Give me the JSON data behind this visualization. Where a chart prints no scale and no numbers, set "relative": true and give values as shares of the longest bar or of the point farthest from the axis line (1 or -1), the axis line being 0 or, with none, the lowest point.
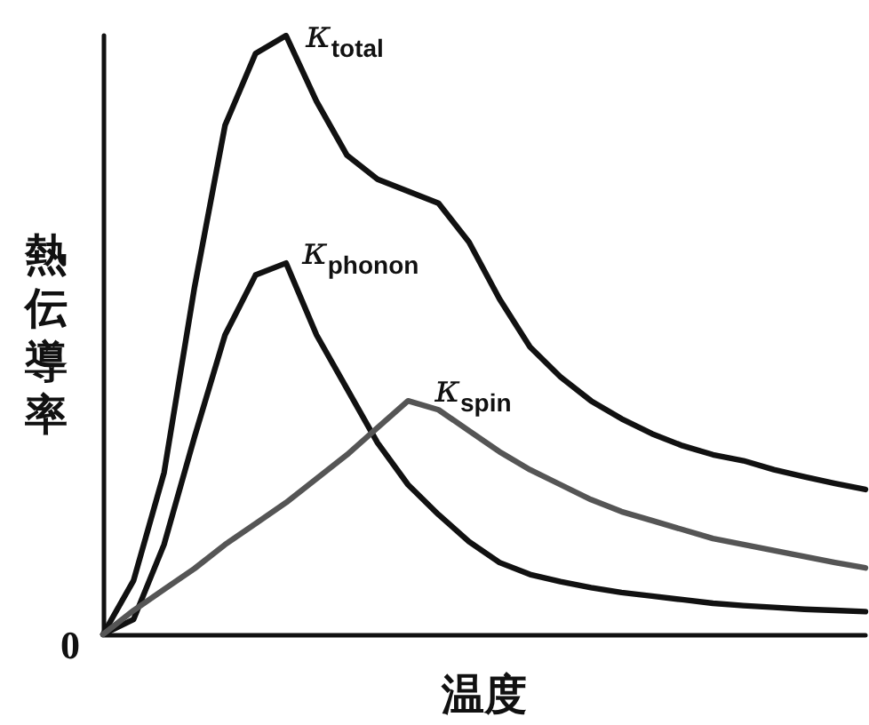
{
  "chart_data": {
    "type": "line",
    "relative": true,
    "xlabel": "温度",
    "ylabel": "熱伝導率",
    "annotations": [
      "0"
    ],
    "grid": false,
    "legend": false,
    "marker": "none",
    "line_style": "solid",
    "tick_labels": false,
    "categories": [
      null,
      null,
      null,
      null,
      null,
      null,
      null,
      null,
      null,
      null,
      null,
      null,
      null,
      null,
      null,
      null,
      null,
      null,
      null,
      null,
      null,
      null,
      null,
      null,
      null,
      null
    ],
    "series": [
      {
        "name": "κ$_{total}$",
        "color": "#111111",
        "values": [
          0,
          0.09,
          0.27,
          0.58,
          0.85,
          0.97,
          1,
          0.89,
          0.8,
          0.76,
          0.74,
          0.72,
          0.655,
          0.56,
          0.48,
          0.43,
          0.39,
          0.36,
          0.335,
          0.315,
          0.3,
          0.29,
          0.275,
          0.263,
          0.252,
          0.242
        ]
      },
      {
        "name": "κ$_{phonon}$",
        "color": "#111111",
        "values": [
          0,
          0.025,
          0.15,
          0.33,
          0.5,
          0.6,
          0.62,
          0.5,
          0.41,
          0.32,
          0.25,
          0.2,
          0.155,
          0.12,
          0.1,
          0.088,
          0.078,
          0.07,
          0.064,
          0.058,
          0.052,
          0.048,
          0.045,
          0.042,
          0.04,
          0.038
        ]
      },
      {
        "name": "κ$_{spin}$",
        "color": "#555555",
        "values": [
          0,
          0.04,
          0.075,
          0.11,
          0.15,
          0.185,
          0.22,
          0.26,
          0.3,
          0.345,
          0.39,
          0.375,
          0.34,
          0.305,
          0.275,
          0.25,
          0.225,
          0.205,
          0.19,
          0.175,
          0.16,
          0.15,
          0.14,
          0.13,
          0.12,
          0.111
        ]
      }
    ]
  }
}
